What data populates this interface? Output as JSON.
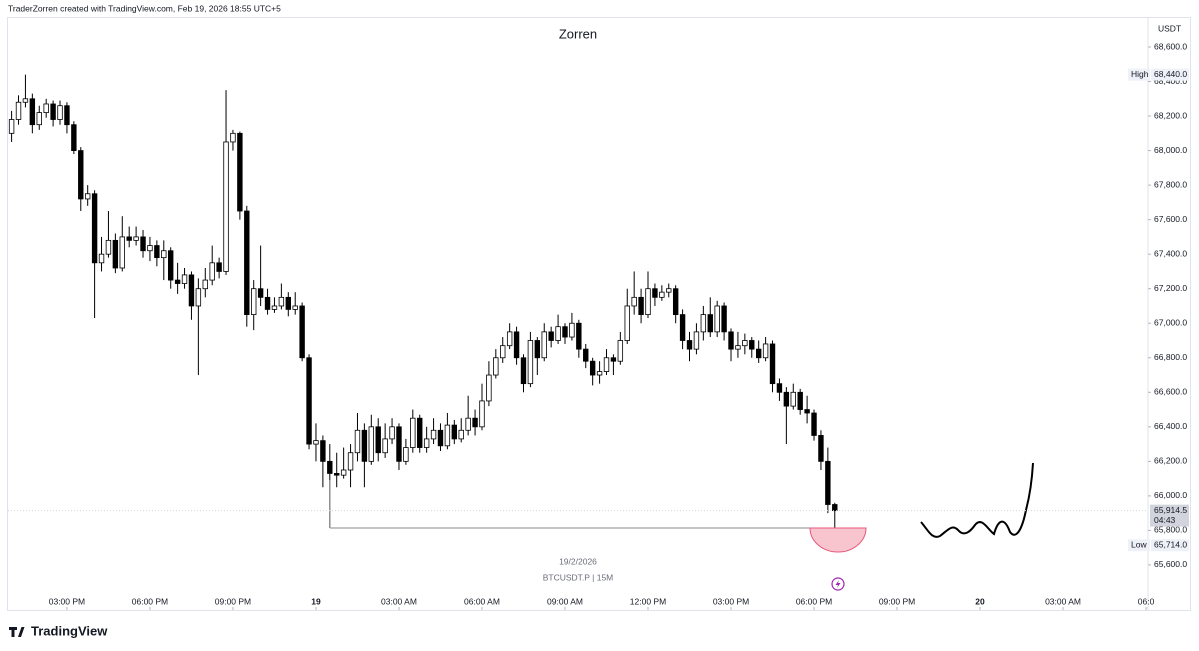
{
  "chart_data": {
    "type": "candlestick",
    "header": "TraderZorren created with TradingView.com, Feb 19, 2026 18:55 UTC+5",
    "title": "Zorren",
    "currency": "USDT",
    "date_label": "19/2/2026",
    "symbol": "BTCUSDT.P | 15M",
    "brand": "TradingView",
    "up_color": "#ffffff",
    "down_color": "#000000",
    "border_color": "#000000",
    "x": [
      13,
      13.25,
      13.5,
      13.75,
      14,
      14.25,
      14.5,
      14.75,
      15,
      15.25,
      15.5,
      15.75,
      16,
      16.25,
      16.5,
      16.75,
      17,
      17.25,
      17.5,
      17.75,
      18,
      18.25,
      18.5,
      18.75,
      19,
      19.25,
      19.5,
      19.75,
      20,
      20.25,
      20.5,
      20.75,
      21,
      21.25,
      21.5,
      21.75,
      22,
      22.25,
      22.5,
      22.75,
      23,
      23.25,
      23.5,
      23.75,
      24,
      24.25,
      24.5,
      24.75,
      25,
      25.25,
      25.5,
      25.75,
      26,
      26.25,
      26.5,
      26.75,
      27,
      27.25,
      27.5,
      27.75,
      28,
      28.25,
      28.5,
      28.75,
      29,
      29.25,
      29.5,
      29.75,
      30,
      30.25,
      30.5,
      30.75,
      31,
      31.25,
      31.5,
      31.75,
      32,
      32.25,
      32.5,
      32.75,
      33,
      33.25,
      33.5,
      33.75,
      34,
      34.25,
      34.5,
      34.75,
      35,
      35.25,
      35.5,
      35.75,
      36,
      36.25,
      36.5,
      36.75,
      37,
      37.25,
      37.5,
      37.75,
      38,
      38.25,
      38.5,
      38.75,
      39,
      39.25,
      39.5,
      39.75,
      40,
      40.25,
      40.5,
      40.75,
      41,
      41.25,
      41.5,
      41.75,
      42,
      42.25,
      42.5,
      42.75
    ],
    "open": [
      68100,
      68180,
      68280,
      68300,
      68150,
      68220,
      68270,
      68180,
      68260,
      68150,
      68000,
      67720,
      67750,
      67350,
      67400,
      67480,
      67320,
      67500,
      67480,
      67500,
      67420,
      67450,
      67380,
      67420,
      67250,
      67230,
      67280,
      67100,
      67200,
      67250,
      67350,
      67300,
      68050,
      68100,
      67650,
      67050,
      67200,
      67150,
      67080,
      67100,
      67150,
      67080,
      67100,
      66800,
      66300,
      66320,
      66200,
      66130,
      66120,
      66150,
      66250,
      66380,
      66200,
      66400,
      66250,
      66330,
      66400,
      66200,
      66280,
      66450,
      66280,
      66330,
      66380,
      66290,
      66410,
      66330,
      66380,
      66450,
      66400,
      66550,
      66700,
      66800,
      66870,
      66950,
      66800,
      66650,
      66900,
      66800,
      66950,
      66900,
      66980,
      66920,
      67000,
      66850,
      66780,
      66700,
      66720,
      66800,
      66780,
      66900,
      67100,
      67150,
      67050,
      67200,
      67150,
      67180,
      67200,
      67050,
      66900,
      66850,
      66950,
      67050,
      66950,
      67100,
      66950,
      66850,
      66870,
      66900,
      66850,
      66800,
      66880,
      66650,
      66600,
      66520,
      66600,
      66500,
      66480,
      66350,
      66200,
      65950
    ],
    "high": [
      68230,
      68320,
      68440,
      68330,
      68260,
      68300,
      68290,
      68290,
      68280,
      68170,
      68020,
      67800,
      67770,
      67500,
      67650,
      67520,
      67620,
      67560,
      67560,
      67540,
      67500,
      67480,
      67480,
      67440,
      67350,
      67320,
      67300,
      67260,
      67320,
      67450,
      67380,
      68350,
      68120,
      68110,
      67680,
      67250,
      67450,
      67200,
      67150,
      67230,
      67180,
      67180,
      67120,
      66820,
      66420,
      66350,
      66300,
      66250,
      66280,
      66300,
      66480,
      66420,
      66470,
      66450,
      66420,
      66450,
      66420,
      66330,
      66500,
      66470,
      66400,
      66450,
      66420,
      66480,
      66440,
      66450,
      66580,
      66500,
      66650,
      66780,
      66850,
      66920,
      67000,
      66980,
      66820,
      66950,
      66920,
      67000,
      66980,
      67050,
      67000,
      67060,
      67020,
      66880,
      66800,
      66780,
      66850,
      66820,
      66950,
      67200,
      67300,
      67200,
      67300,
      67230,
      67220,
      67230,
      67220,
      67080,
      66950,
      67000,
      67100,
      67150,
      67130,
      67120,
      66970,
      66950,
      66940,
      66920,
      66900,
      66920,
      66900,
      66680,
      66630,
      66650,
      66620,
      66580,
      66500,
      66380,
      66280,
      65960
    ],
    "low": [
      68050,
      68150,
      68250,
      68100,
      68120,
      68190,
      68140,
      68150,
      68100,
      67980,
      67650,
      67680,
      67030,
      67300,
      67380,
      67290,
      67300,
      67440,
      67450,
      67380,
      67360,
      67330,
      67250,
      67200,
      67170,
      67200,
      67020,
      66700,
      67150,
      67220,
      67260,
      67280,
      68000,
      67600,
      66980,
      66960,
      67100,
      67050,
      67060,
      67080,
      67040,
      67050,
      66780,
      66270,
      66200,
      66050,
      65815,
      66050,
      66100,
      66050,
      66200,
      66050,
      66180,
      66200,
      66220,
      66300,
      66150,
      66180,
      66250,
      66250,
      66250,
      66300,
      66260,
      66270,
      66300,
      66310,
      66350,
      66350,
      66380,
      66520,
      66680,
      66770,
      66850,
      66760,
      66600,
      66630,
      66700,
      66780,
      66860,
      66880,
      66880,
      66900,
      66800,
      66740,
      66640,
      66650,
      66700,
      66700,
      66760,
      66880,
      67050,
      67000,
      67030,
      67100,
      67130,
      67150,
      67000,
      66850,
      66780,
      66820,
      66900,
      66920,
      66920,
      66900,
      66780,
      66800,
      66820,
      66800,
      66770,
      66780,
      66600,
      66550,
      66300,
      66500,
      66470,
      66420,
      66320,
      66150,
      65900,
      65714
    ],
    "close": [
      68180,
      68280,
      68300,
      68150,
      68220,
      68270,
      68180,
      68260,
      68150,
      68000,
      67720,
      67750,
      67350,
      67400,
      67480,
      67320,
      67500,
      67480,
      67500,
      67420,
      67450,
      67380,
      67420,
      67250,
      67230,
      67280,
      67100,
      67200,
      67250,
      67350,
      67300,
      68050,
      68100,
      67650,
      67050,
      67200,
      67150,
      67080,
      67100,
      67150,
      67080,
      67100,
      66800,
      66300,
      66320,
      66200,
      66130,
      66120,
      66150,
      66250,
      66380,
      66200,
      66400,
      66250,
      66330,
      66400,
      66200,
      66280,
      66450,
      66280,
      66330,
      66380,
      66290,
      66410,
      66330,
      66380,
      66450,
      66400,
      66550,
      66700,
      66800,
      66870,
      66950,
      66800,
      66650,
      66900,
      66800,
      66950,
      66900,
      66980,
      66920,
      67000,
      66850,
      66780,
      66700,
      66720,
      66800,
      66780,
      66900,
      67100,
      67150,
      67050,
      67200,
      67150,
      67180,
      67200,
      67050,
      66900,
      66850,
      66950,
      67050,
      66950,
      67100,
      66950,
      66850,
      66870,
      66900,
      66850,
      66800,
      66880,
      66650,
      66600,
      66520,
      66600,
      66500,
      66480,
      66350,
      66200,
      65950,
      65914.5
    ],
    "xlim": [
      12.87,
      54.07
    ],
    "xticks": [
      {
        "value": 15,
        "label": "03:00 PM"
      },
      {
        "value": 18,
        "label": "06:00 PM"
      },
      {
        "value": 21,
        "label": "09:00 PM"
      },
      {
        "value": 24,
        "label": "19"
      },
      {
        "value": 27,
        "label": "03:00 AM"
      },
      {
        "value": 30,
        "label": "06:00 AM"
      },
      {
        "value": 33,
        "label": "09:00 AM"
      },
      {
        "value": 36,
        "label": "12:00 PM"
      },
      {
        "value": 39,
        "label": "03:00 PM"
      },
      {
        "value": 42,
        "label": "06:00 PM"
      },
      {
        "value": 45,
        "label": "09:00 PM"
      },
      {
        "value": 48,
        "label": "20"
      },
      {
        "value": 51,
        "label": "03:00 AM"
      },
      {
        "value": 54,
        "label": "06:0"
      }
    ],
    "ylim": [
      65339,
      68768
    ],
    "yticks": [
      {
        "value": 68600,
        "label": "68,600.0"
      },
      {
        "value": 68400,
        "label": "68,400.0"
      },
      {
        "value": 68200,
        "label": "68,200.0"
      },
      {
        "value": 68000,
        "label": "68,000.0"
      },
      {
        "value": 67800,
        "label": "67,800.0"
      },
      {
        "value": 67600,
        "label": "67,600.0"
      },
      {
        "value": 67400,
        "label": "67,400.0"
      },
      {
        "value": 67200,
        "label": "67,200.0"
      },
      {
        "value": 67000,
        "label": "67,000.0"
      },
      {
        "value": 66800,
        "label": "66,800.0"
      },
      {
        "value": 66600,
        "label": "66,600.0"
      },
      {
        "value": 66400,
        "label": "66,400.0"
      },
      {
        "value": 66200,
        "label": "66,200.0"
      },
      {
        "value": 66000,
        "label": "66,000.0"
      },
      {
        "value": 65800,
        "label": "65,800.0"
      },
      {
        "value": 65600,
        "label": "65,600.0"
      }
    ],
    "markers": [
      {
        "name": "High",
        "value": 68440,
        "value_label": "68,440.0"
      },
      {
        "name": "Low",
        "value": 65714,
        "value_label": "65,714.0"
      }
    ],
    "last_price": {
      "value": 65914.5,
      "value_label": "65,914.5",
      "countdown": "04:43"
    }
  }
}
